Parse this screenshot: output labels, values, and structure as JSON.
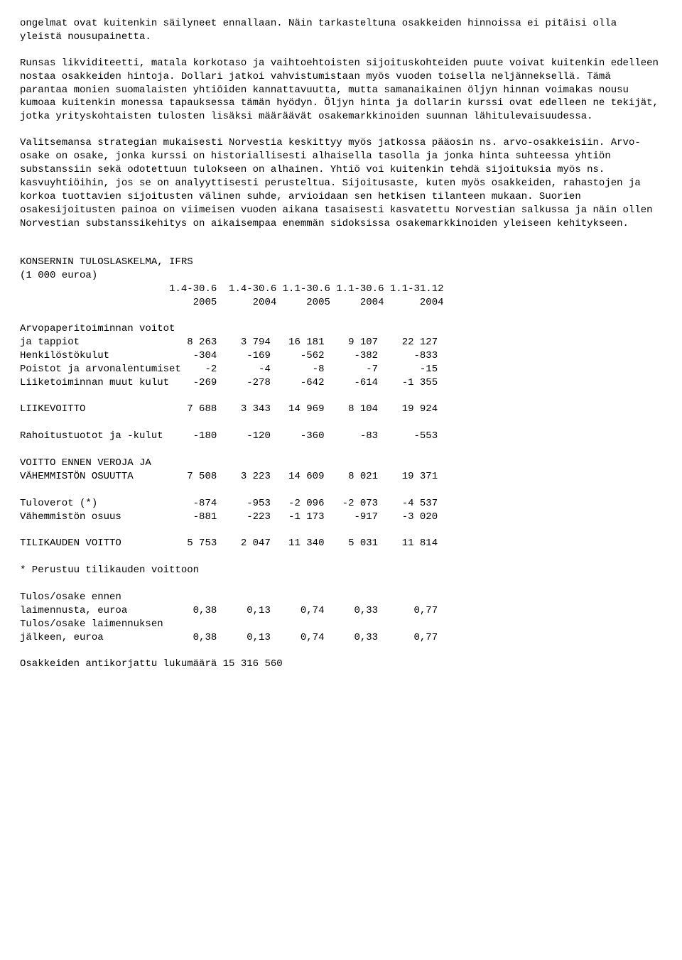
{
  "paragraphs": {
    "p1": "ongelmat ovat kuitenkin säilyneet ennallaan. Näin tarkasteltuna osakkeiden hinnoissa ei pitäisi olla yleistä nousupainetta.",
    "p2": "Runsas likviditeetti, matala korkotaso ja vaihtoehtoisten sijoituskohteiden puute voivat kuitenkin edelleen nostaa osakkeiden hintoja. Dollari jatkoi vahvistumistaan myös vuoden toisella neljänneksellä. Tämä parantaa monien suomalaisten yhtiöiden kannattavuutta, mutta samanaikainen öljyn hinnan voimakas nousu kumoaa kuitenkin monessa tapauksessa tämän hyödyn. Öljyn hinta ja dollarin kurssi ovat edelleen ne tekijät, jotka yrityskohtaisten tulosten lisäksi määräävät osakemarkkinoiden suunnan lähitulevaisuudessa.",
    "p3": "Valitsemansa strategian mukaisesti Norvestia keskittyy myös jatkossa pääosin ns. arvo-osakkeisiin. Arvo-osake on osake, jonka kurssi on historiallisesti alhaisella tasolla ja jonka hinta suhteessa yhtiön substanssiin sekä odotettuun tulokseen on alhainen. Yhtiö voi kuitenkin tehdä sijoituksia myös ns. kasvuyhtiöihin, jos se on analyyttisesti perusteltua. Sijoitusaste, kuten myös osakkeiden, rahastojen ja korkoa tuottavien sijoitusten välinen suhde, arvioidaan sen hetkisen tilanteen mukaan. Suorien osakesijoitusten painoa on viimeisen vuoden aikana tasaisesti kasvatettu Norvestian salkussa ja näin ollen Norvestian substanssikehitys on aikaisempaa enemmän sidoksissa osakemarkkinoiden yleiseen kehitykseen."
  },
  "table": {
    "title_line1": "KONSERNIN TULOSLASKELMA, IFRS",
    "title_line2": "(1 000 euroa)",
    "header_periods": "                         1.4-30.6  1.4-30.6 1.1-30.6 1.1-30.6 1.1-31.12",
    "header_years": "                             2005      2004     2005     2004      2004",
    "rows": [
      "Arvopaperitoiminnan voitot",
      "ja tappiot                  8 263    3 794   16 181    9 107    22 127",
      "Henkilöstökulut              -304     -169     -562     -382      -833",
      "Poistot ja arvonalentumiset    -2       -4       -8       -7       -15",
      "Liiketoiminnan muut kulut    -269     -278     -642     -614    -1 355",
      "",
      "LIIKEVOITTO                 7 688    3 343   14 969    8 104    19 924",
      "",
      "Rahoitustuotot ja -kulut     -180     -120     -360      -83      -553",
      "",
      "VOITTO ENNEN VEROJA JA",
      "VÄHEMMISTÖN OSUUTTA         7 508    3 223   14 609    8 021    19 371",
      "",
      "Tuloverot (*)                -874     -953   -2 096   -2 073    -4 537",
      "Vähemmistön osuus            -881     -223   -1 173     -917    -3 020",
      "",
      "TILIKAUDEN VOITTO           5 753    2 047   11 340    5 031    11 814",
      "",
      "* Perustuu tilikauden voittoon",
      "",
      "Tulos/osake ennen",
      "laimennusta, euroa           0,38     0,13     0,74     0,33      0,77",
      "Tulos/osake laimennuksen",
      "jälkeen, euroa               0,38     0,13     0,74     0,33      0,77",
      "",
      "Osakkeiden antikorjattu lukumäärä 15 316 560"
    ]
  }
}
